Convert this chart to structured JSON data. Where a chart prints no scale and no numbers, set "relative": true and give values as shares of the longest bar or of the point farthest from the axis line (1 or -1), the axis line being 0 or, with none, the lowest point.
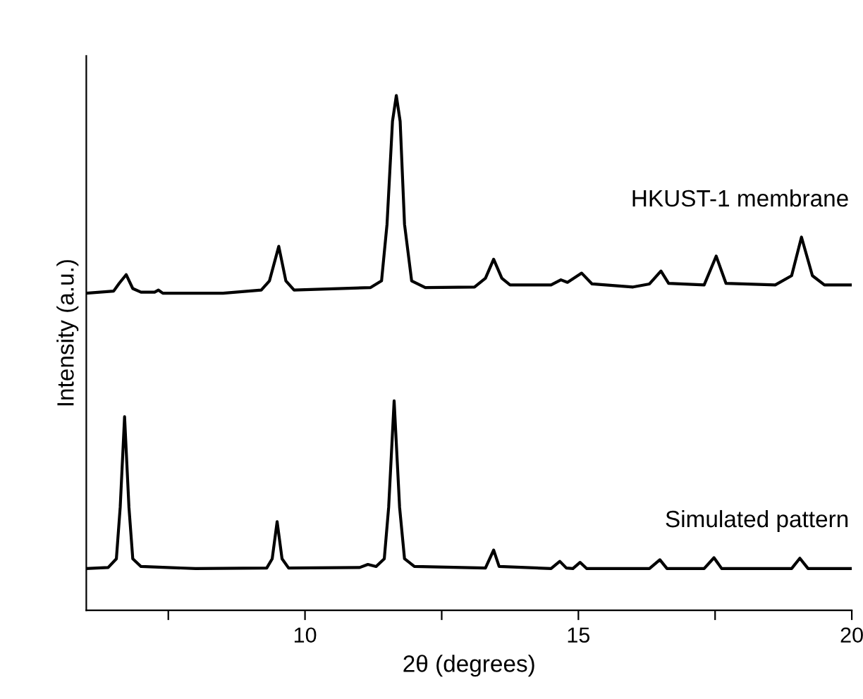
{
  "chart_data": {
    "type": "line",
    "relative": true,
    "xlabel": "2θ (degrees)",
    "ylabel": "Intensity (a.u.)",
    "xlim": [
      6,
      20
    ],
    "xticks": [
      {
        "value": 7.5,
        "label": null
      },
      10,
      {
        "value": 12.5,
        "label": null
      },
      15,
      {
        "value": 17.5,
        "label": null
      },
      20
    ],
    "tick_labels": "x",
    "grid": false,
    "legend": false,
    "marker": "none",
    "line_style": "solid",
    "series": [
      {
        "name": "HKUST-1 membrane",
        "color": "#000000",
        "x": [
          6.0,
          6.5,
          6.6,
          6.73,
          6.85,
          7.0,
          7.25,
          7.32,
          7.4,
          8.5,
          9.2,
          9.35,
          9.52,
          9.65,
          9.8,
          11.2,
          11.4,
          11.5,
          11.6,
          11.67,
          11.74,
          11.82,
          11.95,
          12.2,
          13.1,
          13.3,
          13.45,
          13.6,
          13.75,
          14.5,
          14.68,
          14.8,
          15.06,
          15.25,
          16.0,
          16.3,
          16.51,
          16.65,
          17.3,
          17.52,
          17.7,
          18.6,
          18.9,
          19.08,
          19.28,
          19.5,
          20.0
        ],
        "values": [
          0.616,
          0.62,
          0.635,
          0.652,
          0.625,
          0.618,
          0.618,
          0.622,
          0.616,
          0.616,
          0.622,
          0.64,
          0.707,
          0.64,
          0.622,
          0.627,
          0.64,
          0.75,
          0.95,
          1,
          0.95,
          0.75,
          0.64,
          0.627,
          0.628,
          0.645,
          0.682,
          0.645,
          0.632,
          0.632,
          0.642,
          0.637,
          0.655,
          0.634,
          0.628,
          0.634,
          0.659,
          0.635,
          0.632,
          0.688,
          0.635,
          0.632,
          0.65,
          0.725,
          0.65,
          0.632,
          0.632
        ]
      },
      {
        "name": "Simulated pattern",
        "color": "#000000",
        "x": [
          6.0,
          6.4,
          6.55,
          6.62,
          6.7,
          6.78,
          6.85,
          7.0,
          8.0,
          9.3,
          9.4,
          9.49,
          9.58,
          9.7,
          11.0,
          11.15,
          11.3,
          11.45,
          11.53,
          11.63,
          11.73,
          11.82,
          12.0,
          13.3,
          13.45,
          13.55,
          14.5,
          14.66,
          14.78,
          14.9,
          15.03,
          15.15,
          16.3,
          16.49,
          16.62,
          17.3,
          17.48,
          17.62,
          18.9,
          19.05,
          19.2,
          20.0
        ],
        "values": [
          0.081,
          0.083,
          0.1,
          0.2,
          0.376,
          0.2,
          0.1,
          0.085,
          0.081,
          0.082,
          0.1,
          0.172,
          0.1,
          0.082,
          0.083,
          0.089,
          0.085,
          0.1,
          0.2,
          0.407,
          0.2,
          0.1,
          0.085,
          0.082,
          0.117,
          0.085,
          0.081,
          0.095,
          0.082,
          0.081,
          0.093,
          0.081,
          0.081,
          0.098,
          0.081,
          0.081,
          0.102,
          0.081,
          0.081,
          0.101,
          0.081,
          0.081
        ]
      }
    ]
  }
}
